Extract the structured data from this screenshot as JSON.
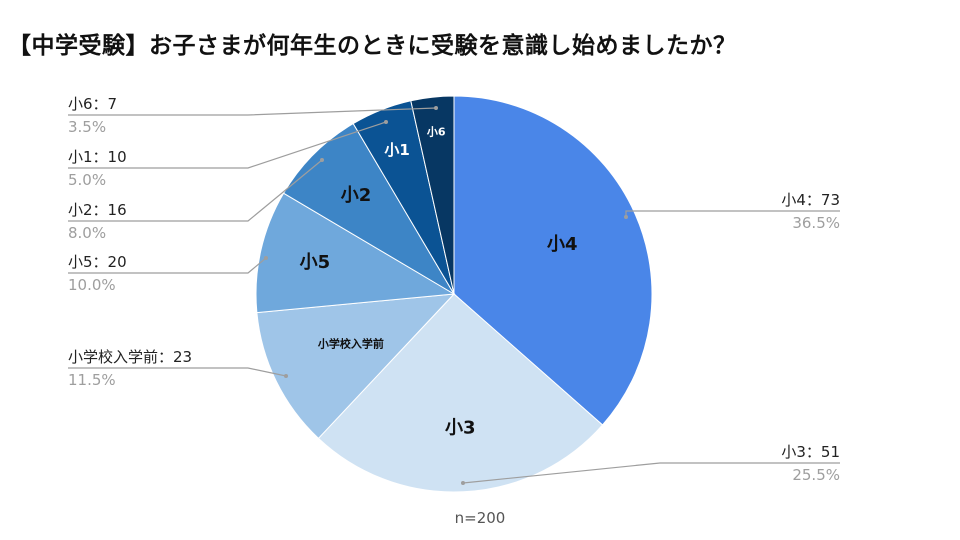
{
  "title": "【中学受験】お子さまが何年生のときに受験を意識し始めましたか？",
  "footnote": "n=200",
  "chart_data": {
    "type": "pie",
    "title": "【中学受験】お子さまが何年生のときに受験を意識し始めましたか？",
    "n_label": "n=200",
    "slices": [
      {
        "label": "小4",
        "value": 73,
        "percent": "36.5%",
        "color": "#4a86e8",
        "slice_text_color": "#111111",
        "legend_side": "right",
        "outside_label": "小4：73"
      },
      {
        "label": "小3",
        "value": 51,
        "percent": "25.5%",
        "color": "#cfe2f3",
        "slice_text_color": "#111111",
        "legend_side": "right",
        "outside_label": "小3：51"
      },
      {
        "label": "小学校入学前",
        "value": 23,
        "percent": "11.5%",
        "color": "#9fc5e8",
        "slice_text_color": "#111111",
        "legend_side": "left",
        "outside_label": "小学校入学前：23"
      },
      {
        "label": "小5",
        "value": 20,
        "percent": "10.0%",
        "color": "#6fa8dc",
        "slice_text_color": "#111111",
        "legend_side": "left",
        "outside_label": "小5：20"
      },
      {
        "label": "小2",
        "value": 16,
        "percent": "8.0%",
        "color": "#3d85c6",
        "slice_text_color": "#111111",
        "legend_side": "left",
        "outside_label": "小2：16"
      },
      {
        "label": "小1",
        "value": 10,
        "percent": "5.0%",
        "color": "#0b5394",
        "slice_text_color": "#ffffff",
        "legend_side": "left",
        "outside_label": "小1：10"
      },
      {
        "label": "小6",
        "value": 7,
        "percent": "3.5%",
        "color": "#073763",
        "slice_text_color": "#ffffff",
        "legend_side": "left",
        "outside_label": "小6：7"
      }
    ]
  }
}
